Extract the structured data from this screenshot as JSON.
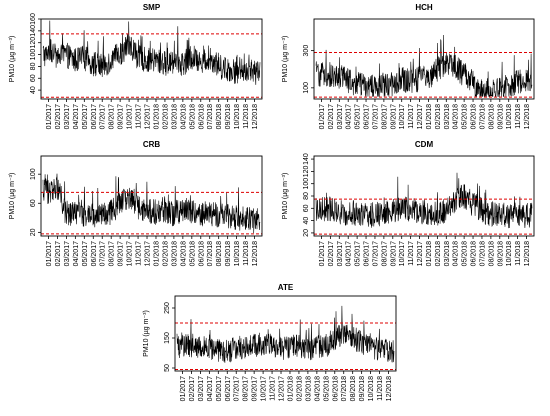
{
  "chart_data": [
    {
      "type": "line",
      "title": "SMP",
      "ylabel": "PM10 (µg m⁻³)",
      "ylim": [
        25,
        160
      ],
      "yticks": [
        40,
        60,
        80,
        100,
        120,
        140,
        160
      ],
      "xticklabels": [
        "01/2017",
        "02/2017",
        "03/2017",
        "04/2017",
        "05/2017",
        "06/2017",
        "07/2017",
        "08/2017",
        "09/2017",
        "10/2017",
        "11/2017",
        "12/2017",
        "01/2018",
        "02/2018",
        "03/2018",
        "04/2018",
        "05/2018",
        "06/2018",
        "07/2018",
        "08/2018",
        "09/2018",
        "10/2018",
        "11/2018",
        "12/2018"
      ],
      "reference_lines": [
        135,
        28
      ],
      "series": [
        {
          "x": [
            "01/2017",
            "02/2017",
            "03/2017",
            "04/2017",
            "05/2017",
            "06/2017",
            "07/2017",
            "08/2017",
            "09/2017",
            "10/2017",
            "11/2017",
            "12/2017",
            "01/2018",
            "02/2018",
            "03/2018",
            "04/2018",
            "05/2018",
            "06/2018",
            "07/2018",
            "08/2018",
            "09/2018",
            "10/2018",
            "11/2018",
            "12/2018"
          ],
          "values": [
            110,
            95,
            100,
            90,
            95,
            85,
            80,
            90,
            100,
            120,
            95,
            90,
            90,
            85,
            90,
            85,
            95,
            90,
            95,
            80,
            75,
            70,
            75,
            70
          ]
        }
      ]
    },
    {
      "type": "line",
      "title": "HCH",
      "ylabel": "PM10 (µg m⁻³)",
      "ylim": [
        40,
        470
      ],
      "yticks": [
        100,
        300
      ],
      "xticklabels": [
        "01/2017",
        "02/2017",
        "03/2017",
        "04/2017",
        "05/2017",
        "06/2017",
        "07/2017",
        "08/2017",
        "09/2017",
        "10/2017",
        "11/2017",
        "12/2017",
        "01/2018",
        "02/2018",
        "03/2018",
        "04/2018",
        "05/2018",
        "06/2018",
        "07/2018",
        "08/2018",
        "09/2018",
        "10/2018",
        "11/2018",
        "12/2018"
      ],
      "reference_lines": [
        290,
        50
      ],
      "series": [
        {
          "x": [
            "01/2017",
            "02/2017",
            "03/2017",
            "04/2017",
            "05/2017",
            "06/2017",
            "07/2017",
            "08/2017",
            "09/2017",
            "10/2017",
            "11/2017",
            "12/2017",
            "01/2018",
            "02/2018",
            "03/2018",
            "04/2018",
            "05/2018",
            "06/2018",
            "07/2018",
            "08/2018",
            "09/2018",
            "10/2018",
            "11/2018",
            "12/2018"
          ],
          "values": [
            190,
            170,
            160,
            140,
            120,
            110,
            100,
            105,
            120,
            150,
            130,
            150,
            160,
            200,
            240,
            210,
            170,
            120,
            80,
            90,
            100,
            120,
            130,
            150
          ]
        }
      ]
    },
    {
      "type": "line",
      "title": "CRB",
      "ylabel": "PM10 (µg m⁻³)",
      "ylim": [
        15,
        125
      ],
      "yticks": [
        20,
        60,
        100
      ],
      "xticklabels": [
        "01/2017",
        "02/2017",
        "03/2017",
        "04/2017",
        "05/2017",
        "06/2017",
        "07/2017",
        "08/2017",
        "09/2017",
        "10/2017",
        "11/2017",
        "12/2017",
        "01/2018",
        "02/2018",
        "03/2018",
        "04/2018",
        "05/2018",
        "06/2018",
        "07/2018",
        "08/2018",
        "09/2018",
        "10/2018",
        "11/2018",
        "12/2018"
      ],
      "reference_lines": [
        75,
        18
      ],
      "series": [
        {
          "x": [
            "01/2017",
            "02/2017",
            "03/2017",
            "04/2017",
            "05/2017",
            "06/2017",
            "07/2017",
            "08/2017",
            "09/2017",
            "10/2017",
            "11/2017",
            "12/2017",
            "01/2018",
            "02/2018",
            "03/2018",
            "04/2018",
            "05/2018",
            "06/2018",
            "07/2018",
            "08/2018",
            "09/2018",
            "10/2018",
            "11/2018",
            "12/2018"
          ],
          "values": [
            75,
            85,
            48,
            45,
            44,
            45,
            42,
            48,
            60,
            68,
            55,
            50,
            48,
            50,
            45,
            52,
            48,
            46,
            45,
            44,
            42,
            40,
            38,
            36
          ]
        }
      ]
    },
    {
      "type": "line",
      "title": "CDM",
      "ylabel": "PM10 (µg m⁻³)",
      "ylim": [
        15,
        145
      ],
      "yticks": [
        20,
        40,
        60,
        80,
        100,
        120,
        140
      ],
      "xticklabels": [
        "01/2017",
        "02/2017",
        "03/2017",
        "04/2017",
        "05/2017",
        "06/2017",
        "07/2017",
        "08/2017",
        "09/2017",
        "10/2017",
        "11/2017",
        "12/2017",
        "01/2018",
        "02/2018",
        "03/2018",
        "04/2018",
        "05/2018",
        "06/2018",
        "07/2018",
        "08/2018",
        "09/2018",
        "10/2018",
        "11/2018",
        "12/2018"
      ],
      "reference_lines": [
        75,
        18
      ],
      "series": [
        {
          "x": [
            "01/2017",
            "02/2017",
            "03/2017",
            "04/2017",
            "05/2017",
            "06/2017",
            "07/2017",
            "08/2017",
            "09/2017",
            "10/2017",
            "11/2017",
            "12/2017",
            "01/2018",
            "02/2018",
            "03/2018",
            "04/2018",
            "05/2018",
            "06/2018",
            "07/2018",
            "08/2018",
            "09/2018",
            "10/2018",
            "11/2018",
            "12/2018"
          ],
          "values": [
            60,
            58,
            55,
            52,
            50,
            48,
            50,
            52,
            55,
            62,
            58,
            55,
            52,
            50,
            58,
            75,
            80,
            65,
            55,
            52,
            50,
            48,
            50,
            48
          ]
        }
      ]
    },
    {
      "type": "line",
      "title": "ATE",
      "ylabel": "PM10 (µg m⁻³)",
      "ylim": [
        40,
        290
      ],
      "yticks": [
        50,
        150,
        250
      ],
      "xticklabels": [
        "01/2017",
        "02/2017",
        "03/2017",
        "04/2017",
        "05/2017",
        "06/2017",
        "07/2017",
        "08/2017",
        "09/2017",
        "10/2017",
        "11/2017",
        "12/2017",
        "01/2018",
        "02/2018",
        "03/2018",
        "04/2018",
        "05/2018",
        "06/2018",
        "07/2018",
        "08/2018",
        "09/2018",
        "10/2018",
        "11/2018",
        "12/2018"
      ],
      "reference_lines": [
        200,
        45
      ],
      "series": [
        {
          "x": [
            "01/2017",
            "02/2017",
            "03/2017",
            "04/2017",
            "05/2017",
            "06/2017",
            "07/2017",
            "08/2017",
            "09/2017",
            "10/2017",
            "11/2017",
            "12/2017",
            "01/2018",
            "02/2018",
            "03/2018",
            "04/2018",
            "05/2018",
            "06/2018",
            "07/2018",
            "08/2018",
            "09/2018",
            "10/2018",
            "11/2018",
            "12/2018"
          ],
          "values": [
            130,
            120,
            125,
            115,
            110,
            105,
            115,
            120,
            125,
            130,
            125,
            115,
            120,
            125,
            115,
            120,
            125,
            150,
            170,
            150,
            130,
            120,
            110,
            105
          ]
        }
      ]
    }
  ],
  "colors": {
    "series": "#000000",
    "reference": "#dd0000",
    "axis": "#000000"
  }
}
